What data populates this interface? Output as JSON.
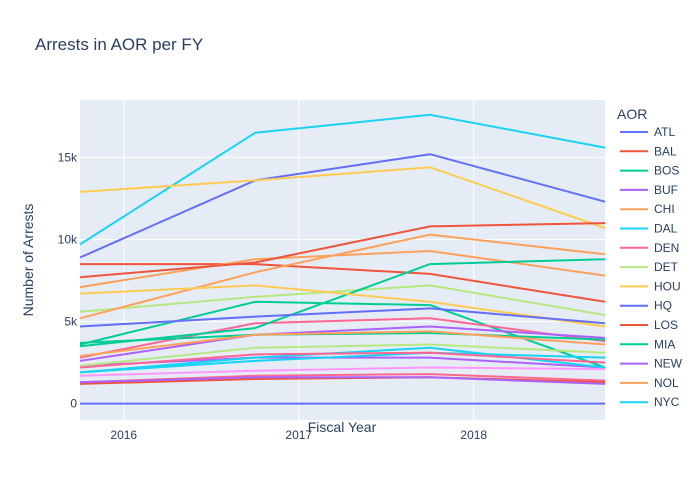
{
  "chart_data": {
    "type": "line",
    "title": "Arrests in AOR per FY",
    "xlabel": "Fiscal Year",
    "ylabel": "Number of Arrests",
    "x": [
      2015.75,
      2016.75,
      2017.75,
      2018.75
    ],
    "x_ticks": [
      2016,
      2017,
      2018
    ],
    "x_tick_labels": [
      "2016",
      "2017",
      "2018"
    ],
    "xlim": [
      2015.75,
      2018.75
    ],
    "y_ticks": [
      0,
      5000,
      10000,
      15000
    ],
    "y_tick_labels": [
      "0",
      "5k",
      "10k",
      "15k"
    ],
    "ylim": [
      -1000,
      18500
    ],
    "grid": true,
    "background": "#e5ecf6",
    "legend_title": "AOR",
    "legend_position": "right",
    "series": [
      {
        "name": "ATL",
        "color": "#636efa",
        "values": [
          8900,
          13600,
          15200,
          12300
        ]
      },
      {
        "name": "BAL",
        "color": "#EF553B",
        "values": [
          8500,
          8500,
          7900,
          6200
        ]
      },
      {
        "name": "BOS",
        "color": "#00cc96",
        "values": [
          3600,
          6200,
          6000,
          2200
        ]
      },
      {
        "name": "BUF",
        "color": "#ab63fa",
        "values": [
          2300,
          2800,
          2800,
          2200
        ]
      },
      {
        "name": "CHI",
        "color": "#FFA15A",
        "values": [
          7100,
          8800,
          9300,
          7800
        ]
      },
      {
        "name": "DAL",
        "color": "#19d3f3",
        "values": [
          9700,
          16500,
          17600,
          15600
        ]
      },
      {
        "name": "DEN",
        "color": "#FF6692",
        "values": [
          2800,
          4900,
          5200,
          3800
        ]
      },
      {
        "name": "DET",
        "color": "#B6E880",
        "values": [
          5600,
          6500,
          7200,
          5400
        ]
      },
      {
        "name": "HOU",
        "color": "#FECB52",
        "values": [
          12900,
          13600,
          14400,
          10700
        ]
      },
      {
        "name": "HQ",
        "color": "#636efa",
        "values": [
          0,
          0,
          0,
          0
        ]
      },
      {
        "name": "LOS",
        "color": "#EF553B",
        "values": [
          7700,
          8600,
          10800,
          11000
        ]
      },
      {
        "name": "MIA",
        "color": "#00cc96",
        "values": [
          3500,
          4600,
          8500,
          8800
        ]
      },
      {
        "name": "NEW",
        "color": "#ab63fa",
        "values": [
          2600,
          4200,
          4700,
          4000
        ]
      },
      {
        "name": "NOL",
        "color": "#FFA15A",
        "values": [
          5200,
          8000,
          10300,
          9100
        ]
      },
      {
        "name": "NYC",
        "color": "#19d3f3",
        "values": [
          1900,
          2800,
          3400,
          2200
        ]
      },
      {
        "name": "",
        "color": "#FF6692",
        "values": [
          1300,
          1700,
          1800,
          1400
        ]
      },
      {
        "name": "",
        "color": "#B6E880",
        "values": [
          2300,
          3400,
          3600,
          3100
        ]
      },
      {
        "name": "",
        "color": "#FECB52",
        "values": [
          6700,
          7200,
          6200,
          4700
        ]
      },
      {
        "name": "",
        "color": "#636efa",
        "values": [
          4700,
          5300,
          5800,
          4900
        ]
      },
      {
        "name": "",
        "color": "#EF553B",
        "values": [
          1200,
          1500,
          1600,
          1300
        ]
      },
      {
        "name": "",
        "color": "#00cc96",
        "values": [
          3700,
          4200,
          4300,
          3900
        ]
      },
      {
        "name": "",
        "color": "#ab63fa",
        "values": [
          1300,
          1600,
          1600,
          1200
        ]
      },
      {
        "name": "",
        "color": "#FFA15A",
        "values": [
          2900,
          4200,
          4400,
          3600
        ]
      },
      {
        "name": "",
        "color": "#19d3f3",
        "values": [
          1900,
          2600,
          3100,
          2800
        ]
      },
      {
        "name": "",
        "color": "#FF6692",
        "values": [
          2200,
          3000,
          3100,
          2500
        ]
      },
      {
        "name": "",
        "color": "#FF97FF",
        "values": [
          1700,
          2000,
          2200,
          2100
        ]
      }
    ]
  }
}
